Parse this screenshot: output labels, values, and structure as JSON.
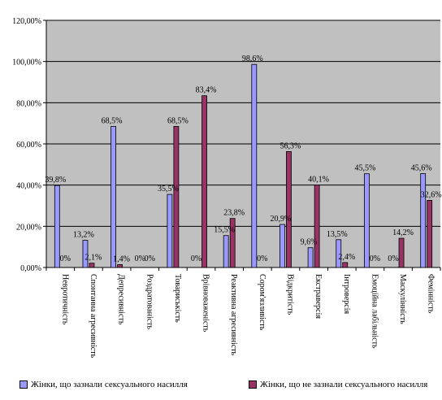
{
  "chart_data": {
    "type": "bar",
    "categories": [
      "Невротичність",
      "Спонтанна агресивність",
      "Депресивність",
      "Роздратованість",
      "Товариськість",
      "Врівноваженість",
      "Реактивна агресивність",
      "Сором'язливість",
      "Відкритість",
      "Екстраверсія",
      "Інтроверсія",
      "Емоційна лабільність",
      "Маскулінність",
      "Фемінність"
    ],
    "series": [
      {
        "name": "Жінки, що зазнали сексуального насилля",
        "color": "#9999ff",
        "values": [
          39.8,
          13.2,
          68.5,
          0,
          35.5,
          0,
          15.5,
          98.6,
          20.9,
          9.6,
          13.5,
          45.5,
          0,
          45.6
        ],
        "labels": [
          "39,8%",
          "13,2%",
          "68,5%",
          "0%",
          "35,5%",
          "0%",
          "15,5%",
          "98,6%",
          "20,9%",
          "9,6%",
          "13,5%",
          "45,5%",
          "0%",
          "45,6%"
        ]
      },
      {
        "name": "Жінки, що не зазнали сексуального насилля",
        "color": "#993366",
        "values": [
          0,
          2.1,
          1.4,
          0,
          68.5,
          83.4,
          23.8,
          0,
          56.3,
          40.1,
          2.4,
          0,
          14.2,
          32.6
        ],
        "labels": [
          "0%",
          "2,1%",
          "1,4%",
          "0%",
          "68,5%",
          "83,4%",
          "23,8%",
          "0%",
          "56,3%",
          "40,1%",
          "2,4%",
          "0%",
          "14,2%",
          "32,6%"
        ]
      }
    ],
    "yticks": [
      "0,00%",
      "20,00%",
      "40,00%",
      "60,00%",
      "80,00%",
      "100,00%",
      "120,00%"
    ],
    "ylim": [
      0,
      120
    ],
    "grid": true,
    "plot_background": "#c0c0c0",
    "legend_position": "bottom"
  }
}
